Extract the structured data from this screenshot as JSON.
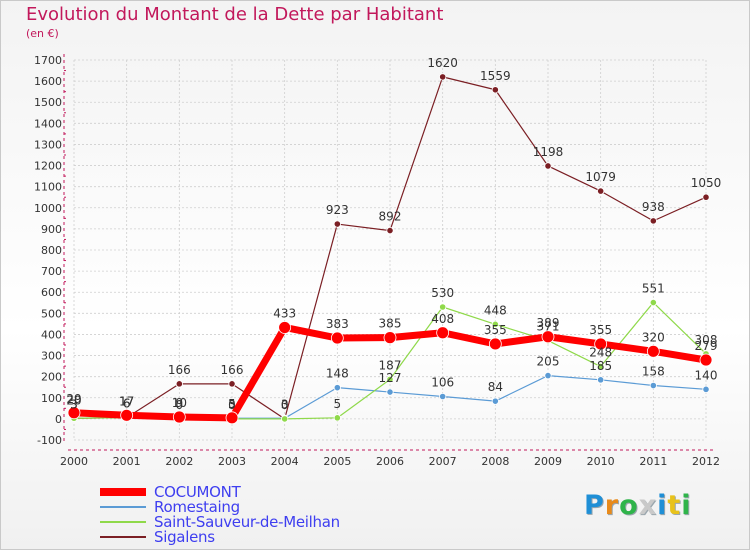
{
  "header": {
    "title": "Evolution du Montant de la Dette par Habitant",
    "unit": "(en €)"
  },
  "chart_data": {
    "type": "line",
    "title": "Evolution du Montant de la Dette par Habitant",
    "ylabel": "(en €)",
    "x": [
      "2000",
      "2001",
      "2002",
      "2003",
      "2004",
      "2005",
      "2006",
      "2007",
      "2008",
      "2009",
      "2010",
      "2011",
      "2012"
    ],
    "ylim": [
      -100,
      1700
    ],
    "yticks": [
      -100,
      0,
      100,
      200,
      300,
      400,
      500,
      600,
      700,
      800,
      900,
      1000,
      1100,
      1200,
      1300,
      1400,
      1500,
      1600,
      1700
    ],
    "grid": true,
    "legend": "bottom-left",
    "series": [
      {
        "name": "Sigalens",
        "color": "#7b1f24",
        "values": [
          3,
          6,
          166,
          166,
          0,
          923,
          892,
          1620,
          1559,
          1198,
          1079,
          938,
          1050
        ]
      },
      {
        "name": "Romestaing",
        "color": "#5b9bd5",
        "values": [
          20,
          17,
          10,
          3,
          3,
          148,
          127,
          106,
          84,
          205,
          185,
          158,
          140
        ]
      },
      {
        "name": "Saint-Sauveur-de-Meilhan",
        "color": "#8fd94a",
        "values": [
          3,
          6,
          0,
          0,
          0,
          5,
          187,
          530,
          448,
          371,
          248,
          551,
          308
        ]
      },
      {
        "name": "COCUMONT",
        "color": "#ff0000",
        "values": [
          29,
          17,
          9,
          5,
          433,
          383,
          385,
          408,
          355,
          389,
          355,
          320,
          279
        ]
      }
    ],
    "legend_order": [
      "COCUMONT",
      "Romestaing",
      "Saint-Sauveur-de-Meilhan",
      "Sigalens"
    ]
  },
  "logo": {
    "letters": [
      "P",
      "r",
      "o",
      "x",
      "i",
      "t",
      "i"
    ],
    "colors": [
      "#1f8fd6",
      "#e88a1a",
      "#2fb44a",
      "#c9c9c9",
      "#1f8fd6",
      "#e8c21a",
      "#2fb44a"
    ]
  }
}
